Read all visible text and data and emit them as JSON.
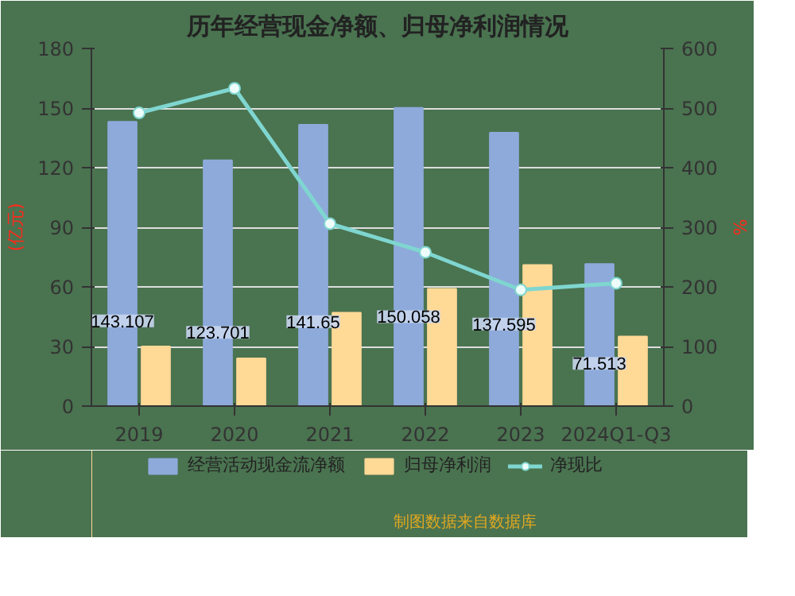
{
  "chart_data": {
    "type": "bar",
    "title": "历年经营现金净额、归母净利润情况",
    "ylabel": "(亿元)",
    "y2label": "%",
    "categories": [
      "2019",
      "2020",
      "2021",
      "2022",
      "2023",
      "2024Q1-Q3"
    ],
    "series": [
      {
        "name": "经营活动现金流净额",
        "color": "#8eaadb",
        "values": [
          143.107,
          123.701,
          141.65,
          150.058,
          137.595,
          71.513
        ],
        "value_labels": [
          "143.107",
          "123.701",
          "141.65",
          "150.058",
          "137.595",
          "71.513"
        ]
      },
      {
        "name": "归母净利润",
        "color": "#ffd996",
        "values": [
          30,
          24,
          47,
          59,
          71,
          35
        ]
      },
      {
        "name": "净现比",
        "type": "line",
        "axis": "y2",
        "color": "#7fd6d0",
        "marker": "circle",
        "values": [
          492,
          533,
          306,
          258,
          195,
          206
        ]
      }
    ],
    "ylim": [
      0,
      180
    ],
    "yticks": [
      0,
      30,
      60,
      90,
      120,
      150,
      180
    ],
    "y2lim": [
      0,
      600
    ],
    "y2ticks": [
      0,
      100,
      200,
      300,
      400,
      500,
      600
    ],
    "grid": "y",
    "legend": "bottom",
    "annotations": [
      "制图数据来自数据库"
    ]
  }
}
